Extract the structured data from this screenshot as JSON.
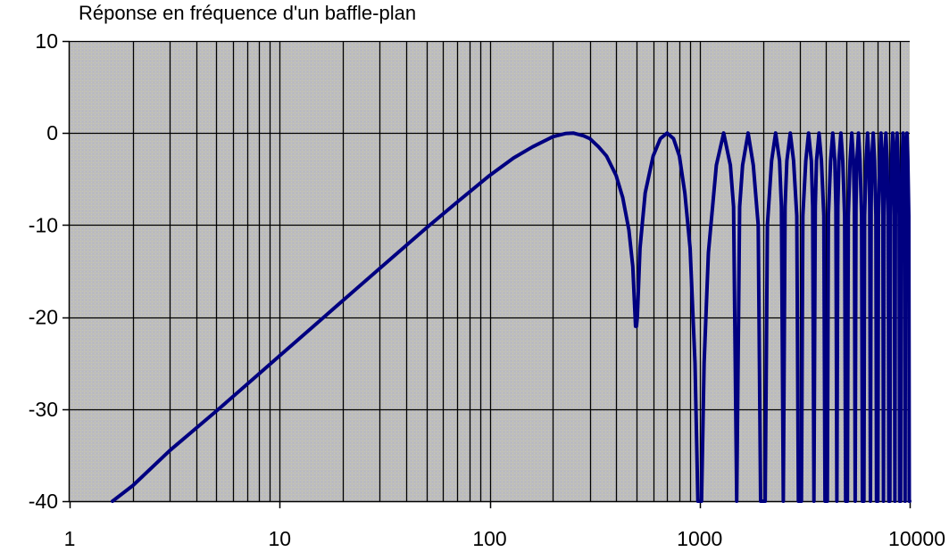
{
  "chart_data": {
    "type": "line",
    "title": "Réponse en fréquence d'un baffle-plan",
    "xlabel": "",
    "ylabel": "",
    "x_scale": "log",
    "xlim": [
      1,
      10000
    ],
    "ylim": [
      -40,
      10
    ],
    "x_ticks": [
      1,
      10,
      100,
      1000,
      10000
    ],
    "x_tick_labels": [
      "1",
      "10",
      "100",
      "1000",
      "10000"
    ],
    "y_ticks": [
      10,
      0,
      -10,
      -20,
      -30,
      -40
    ],
    "y_tick_labels": [
      "10",
      "0",
      "-10",
      "-20",
      "-30",
      "-40"
    ],
    "grid": true,
    "legend": "none",
    "plot_background": "#c0c0c0",
    "gridline_color": "#000000",
    "series": [
      {
        "color": "#000080",
        "line_width": 4,
        "x": [
          1.6,
          2,
          3,
          5,
          7,
          10,
          15,
          20,
          30,
          50,
          70,
          100,
          130,
          160,
          200,
          230,
          250,
          280,
          300,
          330,
          360,
          400,
          430,
          460,
          480,
          495,
          500,
          505,
          520,
          550,
          600,
          650,
          700,
          750,
          800,
          850,
          900,
          950,
          980,
          1000,
          1020,
          1050,
          1100,
          1200,
          1300,
          1400,
          1450,
          1500,
          1550,
          1600,
          1700,
          1800,
          1900,
          1950,
          2000,
          2050,
          2100,
          2200,
          2300,
          2400,
          2450,
          2500,
          2550,
          2600,
          2700,
          2800,
          2900,
          2950,
          3000,
          3050,
          3100,
          3200,
          3300,
          3400,
          3450,
          3500,
          3550,
          3600,
          3700,
          3800,
          3900,
          3950,
          4000,
          4050,
          4100,
          4200,
          4300,
          4400,
          4450,
          4500,
          4550,
          4600,
          4700,
          4800,
          4900,
          4950,
          5000,
          5050,
          5100,
          5200,
          5300,
          5400,
          5450,
          5500,
          5550,
          5600,
          5700,
          5800,
          5900,
          5950,
          6000,
          6050,
          6100,
          6200,
          6300,
          6400,
          6450,
          6500,
          6550,
          6600,
          6700,
          6800,
          6900,
          6950,
          7000,
          7050,
          7100,
          7200,
          7300,
          7400,
          7450,
          7500,
          7550,
          7600,
          7700,
          7800,
          7900,
          7950,
          8000,
          8050,
          8100,
          8200,
          8300,
          8400,
          8450,
          8500,
          8550,
          8600,
          8700,
          8800,
          8900,
          8950,
          9000,
          9050,
          9100,
          9200,
          9300,
          9400,
          9450,
          9500,
          9550,
          9600,
          9700,
          9800,
          9900,
          9950,
          10000
        ],
        "y": [
          -40,
          -38.3,
          -34.5,
          -30.2,
          -27.3,
          -24.2,
          -20.7,
          -18.2,
          -14.7,
          -10.3,
          -7.5,
          -4.6,
          -2.7,
          -1.5,
          -0.4,
          -0.05,
          0,
          -0.3,
          -0.6,
          -1.5,
          -2.5,
          -4.6,
          -7.0,
          -10.5,
          -14.5,
          -21,
          -21,
          -20,
          -12.5,
          -6.5,
          -2.5,
          -0.6,
          0,
          -0.6,
          -2.5,
          -6.5,
          -12.5,
          -25,
          -40,
          -40,
          -40,
          -25,
          -13,
          -3.5,
          0,
          -3.5,
          -8,
          -40,
          -8,
          -3.5,
          0,
          -3.5,
          -10,
          -40,
          -40,
          -40,
          -10,
          -3,
          0,
          -3,
          -8,
          -40,
          -8,
          -3,
          0,
          -3,
          -9,
          -40,
          -40,
          -40,
          -9,
          -3,
          0,
          -3,
          -8,
          -40,
          -8,
          -3,
          0,
          -3,
          -9,
          -40,
          -40,
          -40,
          -9,
          -3,
          0,
          -3,
          -8,
          -40,
          -8,
          -3,
          0,
          -3,
          -9,
          -40,
          -40,
          -40,
          -9,
          -3,
          0,
          -3,
          -8,
          -40,
          -8,
          -3,
          0,
          -3,
          -9,
          -40,
          -40,
          -40,
          -9,
          -3,
          0,
          -3,
          -8,
          -40,
          -8,
          -3,
          0,
          -3,
          -9,
          -40,
          -40,
          -40,
          -9,
          -3,
          0,
          -3,
          -8,
          -40,
          -8,
          -3,
          0,
          -3,
          -9,
          -40,
          -40,
          -40,
          -9,
          -3,
          0,
          -3,
          -8,
          -40,
          -8,
          -3,
          0,
          -3,
          -9,
          -40,
          -40,
          -40,
          -9,
          -3,
          0,
          -3,
          -8,
          -40,
          -8,
          -3,
          0,
          -3,
          -9,
          -40,
          -40
        ]
      }
    ]
  }
}
